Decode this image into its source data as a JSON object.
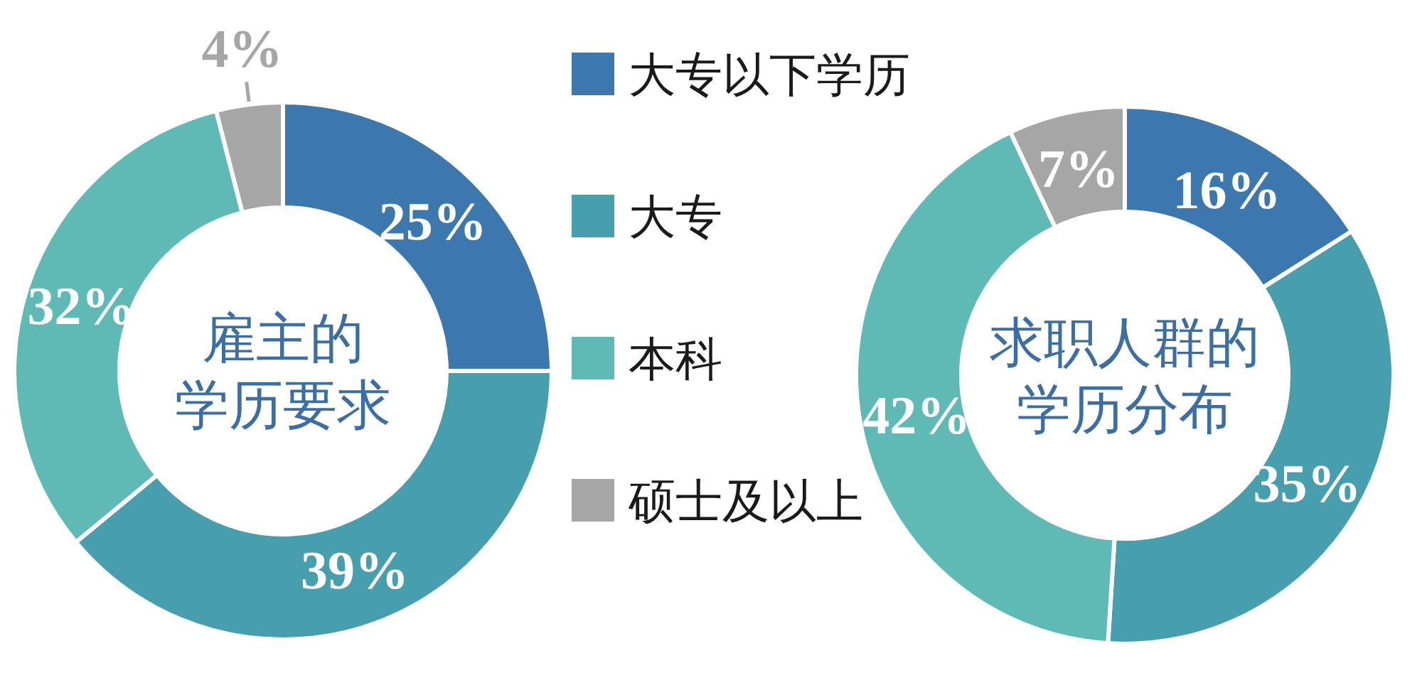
{
  "chart_data": [
    {
      "type": "donut",
      "title": "雇主的学历要求",
      "categories": [
        "大专以下学历",
        "大专",
        "本科",
        "硕士及以上"
      ],
      "values": [
        25,
        39,
        32,
        4
      ],
      "colors": [
        "#3c78ae",
        "#479eac",
        "#5fbab6",
        "#a6a6a6"
      ],
      "value_labels": [
        "25%",
        "39%",
        "32%",
        "4%"
      ],
      "legend": "right"
    },
    {
      "type": "donut",
      "title": "求职人群的学历分布",
      "categories": [
        null,
        null,
        null,
        null
      ],
      "values": [
        16,
        35,
        42,
        7
      ],
      "colors": [
        "#3c78ae",
        "#479eac",
        "#5fbab6",
        "#a6a6a6"
      ],
      "value_labels": [
        "16%",
        "35%",
        "42%",
        "7%"
      ]
    }
  ]
}
